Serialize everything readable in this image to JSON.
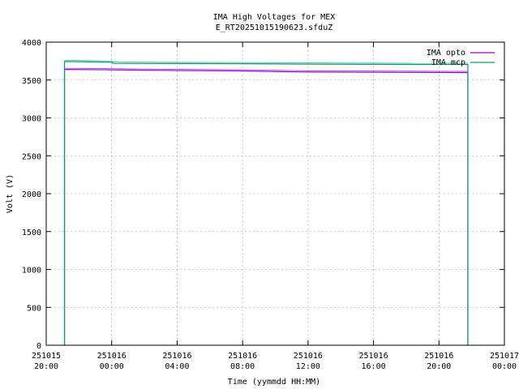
{
  "chart_data": {
    "type": "line",
    "title": "IMA High Voltages for MEX",
    "subtitle": "E_RT20251015190623.sfduZ",
    "xlabel": "Time (yymmdd HH:MM)",
    "ylabel": "Volt (V)",
    "xlim": [
      "2025-10-15 20:00",
      "2025-10-17 00:00"
    ],
    "ylim": [
      0,
      4000
    ],
    "grid": true,
    "legend_position": "top-right",
    "yticks": [
      0,
      500,
      1000,
      1500,
      2000,
      2500,
      3000,
      3500,
      4000
    ],
    "xticks": [
      {
        "date": "251015",
        "time": "20:00"
      },
      {
        "date": "251016",
        "time": "00:00"
      },
      {
        "date": "251016",
        "time": "04:00"
      },
      {
        "date": "251016",
        "time": "08:00"
      },
      {
        "date": "251016",
        "time": "12:00"
      },
      {
        "date": "251016",
        "time": "16:00"
      },
      {
        "date": "251016",
        "time": "20:00"
      },
      {
        "date": "251017",
        "time": "00:00"
      }
    ],
    "series": [
      {
        "name": "IMA opto",
        "color": "#9400d3",
        "points": [
          [
            "2025-10-15 21:07",
            0
          ],
          [
            "2025-10-15 21:07",
            3640
          ],
          [
            "2025-10-16 00:00",
            3635
          ],
          [
            "2025-10-16 04:00",
            3625
          ],
          [
            "2025-10-16 08:00",
            3620
          ],
          [
            "2025-10-16 12:00",
            3605
          ],
          [
            "2025-10-16 16:00",
            3603
          ],
          [
            "2025-10-16 20:00",
            3600
          ],
          [
            "2025-10-16 21:46",
            3598
          ],
          [
            "2025-10-16 21:46",
            0
          ]
        ]
      },
      {
        "name": "IMA mcp",
        "color": "#009e73",
        "points": [
          [
            "2025-10-15 21:07",
            0
          ],
          [
            "2025-10-15 21:07",
            3745
          ],
          [
            "2025-10-16 00:00",
            3735
          ],
          [
            "2025-10-16 00:05",
            3720
          ],
          [
            "2025-10-16 04:00",
            3718
          ],
          [
            "2025-10-16 08:00",
            3715
          ],
          [
            "2025-10-16 12:00",
            3710
          ],
          [
            "2025-10-16 16:00",
            3707
          ],
          [
            "2025-10-16 20:00",
            3705
          ],
          [
            "2025-10-16 21:46",
            3705
          ],
          [
            "2025-10-16 21:46",
            0
          ]
        ]
      }
    ]
  }
}
